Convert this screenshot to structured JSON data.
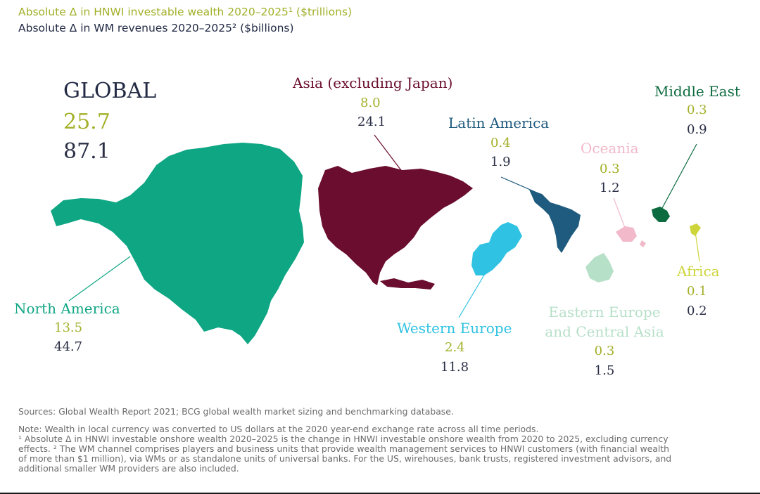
{
  "chart_data": {
    "type": "map",
    "title_lines": [
      "Absolute Δ in HNWI investable wealth 2020–2025¹ ($trillions)",
      "Absolute Δ in WM revenues 2020–2025² ($billions)"
    ],
    "global": {
      "label": "GLOBAL",
      "wealth": "25.7",
      "revenue": "87.1"
    },
    "regions": [
      {
        "id": "north-america",
        "name": "North America",
        "wealth": "13.5",
        "revenue": "44.7",
        "color": "#0ea683"
      },
      {
        "id": "asia",
        "name": "Asia (excluding Japan)",
        "wealth": "8.0",
        "revenue": "24.1",
        "color": "#6a0d2e"
      },
      {
        "id": "latin-america",
        "name": "Latin America",
        "wealth": "0.4",
        "revenue": "1.9",
        "color": "#1f5b7e"
      },
      {
        "id": "oceania",
        "name": "Oceania",
        "wealth": "0.3",
        "revenue": "1.2",
        "color": "#f1b9ca"
      },
      {
        "id": "middle-east",
        "name": "Middle East",
        "wealth": "0.3",
        "revenue": "0.9",
        "color": "#0d6b40"
      },
      {
        "id": "africa",
        "name": "Africa",
        "wealth": "0.1",
        "revenue": "0.2",
        "color": "#cdd53b"
      },
      {
        "id": "western-europe",
        "name": "Western Europe",
        "wealth": "2.4",
        "revenue": "11.8",
        "color": "#2fc2e2"
      },
      {
        "id": "eastern-europe",
        "name": "Eastern Europe\nand Central Asia",
        "wealth": "0.3",
        "revenue": "1.5",
        "color": "#b7e0c8"
      }
    ]
  },
  "colors": {
    "wealth_value": "#a3b02a",
    "revenue_value": "#2b3046",
    "footer_text": "#6b6b6b"
  },
  "footer": {
    "sources": "Sources: Global Wealth Report 2021; BCG global wealth market sizing and benchmarking database.",
    "notes": [
      "Note: Wealth in local currency was converted to US dollars at the 2020 year-end exchange rate across all time periods.",
      "¹ Absolute Δ in HNWI investable onshore wealth 2020–2025 is the change in HNWI investable onshore wealth from 2020 to 2025, excluding currency",
      "effects. ² The WM channel comprises players and business units that provide wealth management services to HNWI customers (with financial wealth",
      "of more than $1 million), via WMs or as standalone units of universal banks. For the US, wirehouses, bank trusts, registered investment advisors, and",
      "additional smaller WM providers are also included."
    ]
  }
}
